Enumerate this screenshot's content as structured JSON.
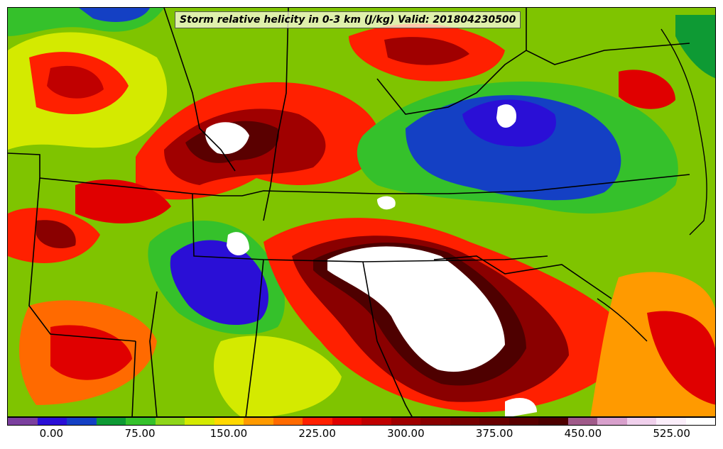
{
  "title": "Storm relative helicity in 0-3 km (J/kg) Valid: 201804230500",
  "colorbar": {
    "colors": [
      "#7b3f9e",
      "#2a0fd6",
      "#1440c4",
      "#0e9a34",
      "#35c12b",
      "#8fd61a",
      "#d4ea00",
      "#ffd800",
      "#ff9a00",
      "#ff6a00",
      "#ff2000",
      "#e00000",
      "#c00000",
      "#a00000",
      "#8a0000",
      "#780000",
      "#6a0000",
      "#5a0000",
      "#4e0000",
      "#a05a8a",
      "#d8a0cc",
      "#f0d0ec",
      "#fbeefa",
      "#ffffff"
    ],
    "tick_labels": [
      "0.00",
      "75.00",
      "150.00",
      "225.00",
      "300.00",
      "375.00",
      "450.00",
      "525.00"
    ],
    "tick_values": [
      0,
      75,
      150,
      225,
      300,
      375,
      450,
      525
    ],
    "range": [
      -37.5,
      562.5
    ]
  }
}
